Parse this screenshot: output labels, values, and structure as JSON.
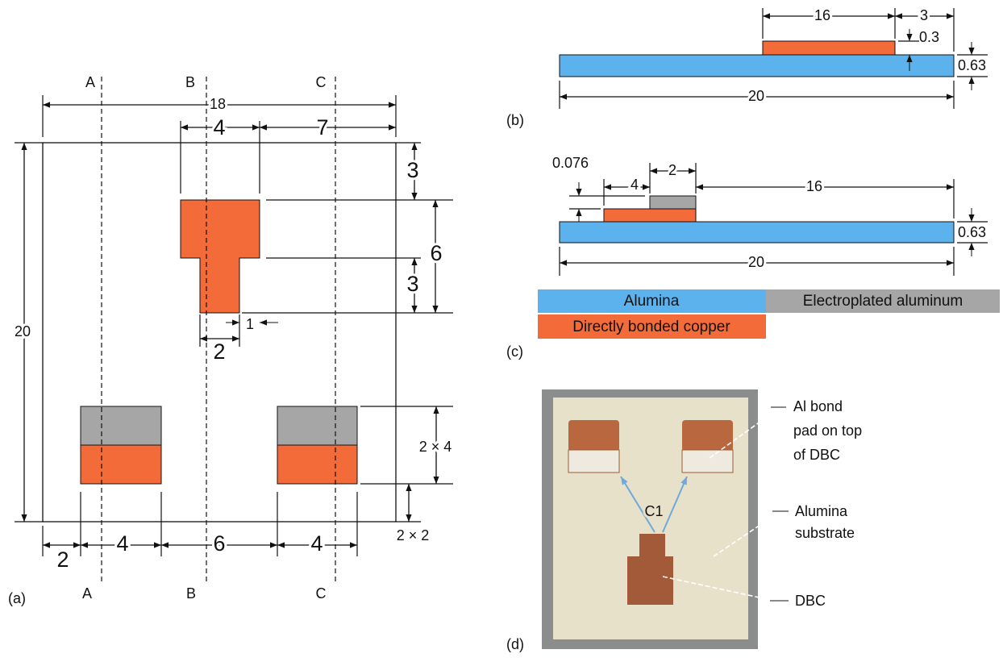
{
  "panel_a": {
    "label": "(a)",
    "sections_top": [
      "A",
      "B",
      "C"
    ],
    "sections_bottom": [
      "A",
      "B",
      "C"
    ],
    "dims": {
      "overall_width": "18",
      "pad_offset": "4",
      "right_offset": "7",
      "top_gap": "3",
      "pad_height": "6",
      "stem_height": "3",
      "stem_inset": "1",
      "stem_width": "2",
      "overall_height": "20",
      "bottom_pad_size": "2 × 4",
      "bottom_margin": "2 × 2",
      "left_margin": "2",
      "left_pad_width": "4",
      "pad_spacing": "6",
      "right_pad_width": "4"
    }
  },
  "panel_b": {
    "label": "(b)",
    "dims": {
      "copper_length": "16",
      "copper_inset": "3",
      "copper_thickness": "0.3",
      "substrate_thickness": "0.63",
      "substrate_length": "20"
    }
  },
  "panel_c": {
    "label": "(c)",
    "dims": {
      "aluminum_thickness": "0.076",
      "copper_length": "4",
      "aluminum_length": "2",
      "remaining_length": "16",
      "substrate_thickness": "0.63",
      "substrate_length": "20"
    }
  },
  "legend": {
    "alumina": "Alumina",
    "aluminum": "Electroplated aluminum",
    "copper": "Directly bonded copper"
  },
  "panel_d": {
    "label": "(d)",
    "arrow_label": "C1",
    "callouts": {
      "bond_pad": [
        "Al bond",
        "pad on top",
        "of DBC"
      ],
      "substrate": [
        "Alumina",
        "substrate"
      ],
      "dbc": [
        "DBC"
      ]
    }
  }
}
